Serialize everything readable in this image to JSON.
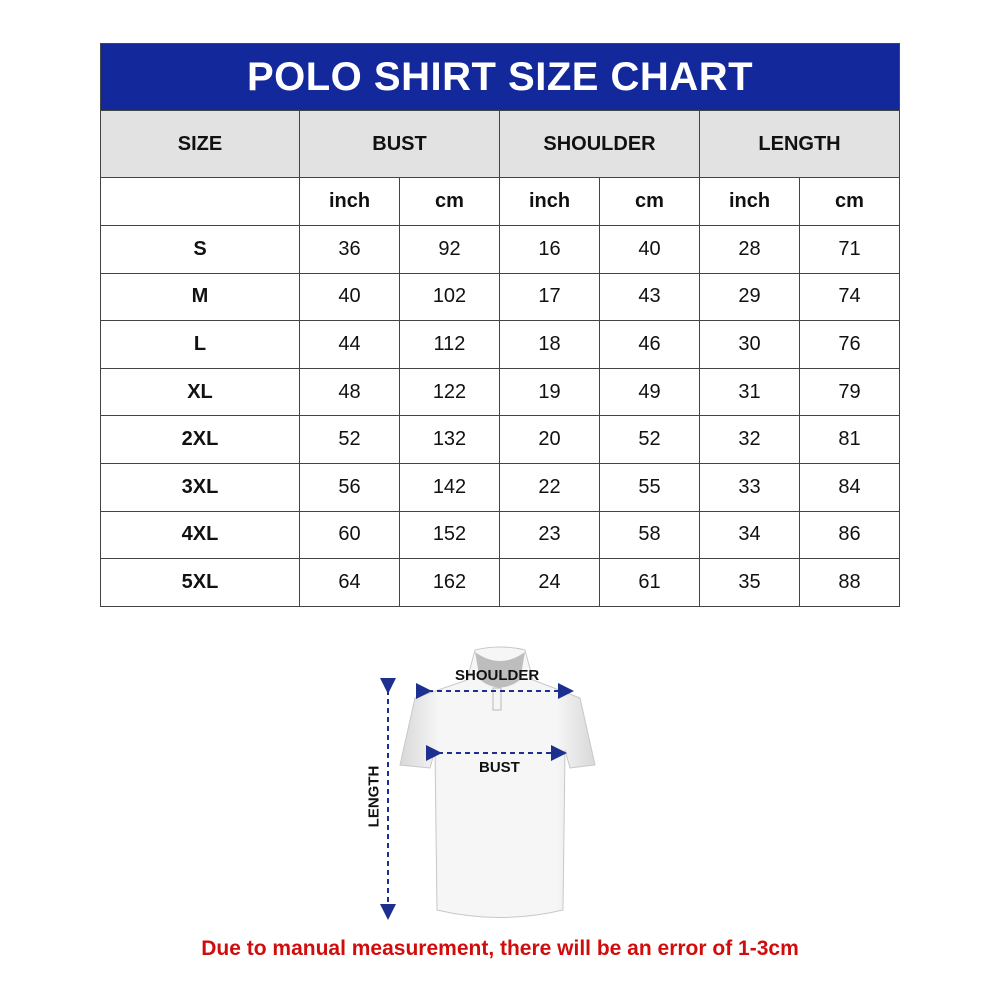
{
  "title": "POLO SHIRT SIZE CHART",
  "headers": [
    "SIZE",
    "BUST",
    "SHOULDER",
    "LENGTH"
  ],
  "units": [
    "inch",
    "cm",
    "inch",
    "cm",
    "inch",
    "cm"
  ],
  "rows": [
    {
      "size": "S",
      "values": [
        "36",
        "92",
        "16",
        "40",
        "28",
        "71"
      ]
    },
    {
      "size": "M",
      "values": [
        "40",
        "102",
        "17",
        "43",
        "29",
        "74"
      ]
    },
    {
      "size": "L",
      "values": [
        "44",
        "112",
        "18",
        "46",
        "30",
        "76"
      ]
    },
    {
      "size": "XL",
      "values": [
        "48",
        "122",
        "19",
        "49",
        "31",
        "79"
      ]
    },
    {
      "size": "2XL",
      "values": [
        "52",
        "132",
        "20",
        "52",
        "32",
        "81"
      ]
    },
    {
      "size": "3XL",
      "values": [
        "56",
        "142",
        "22",
        "55",
        "33",
        "84"
      ]
    },
    {
      "size": "4XL",
      "values": [
        "60",
        "152",
        "23",
        "58",
        "34",
        "86"
      ]
    },
    {
      "size": "5XL",
      "values": [
        "64",
        "162",
        "24",
        "61",
        "35",
        "88"
      ]
    }
  ],
  "diagram": {
    "shoulder": "SHOULDER",
    "bust": "BUST",
    "length": "LENGTH"
  },
  "note": "Due to manual measurement, there will be an error of 1-3cm",
  "colors": {
    "title_bg": "#13289a",
    "header_bg": "#e2e2e2",
    "note": "#d10c0c",
    "arrow": "#1d2f8f"
  }
}
